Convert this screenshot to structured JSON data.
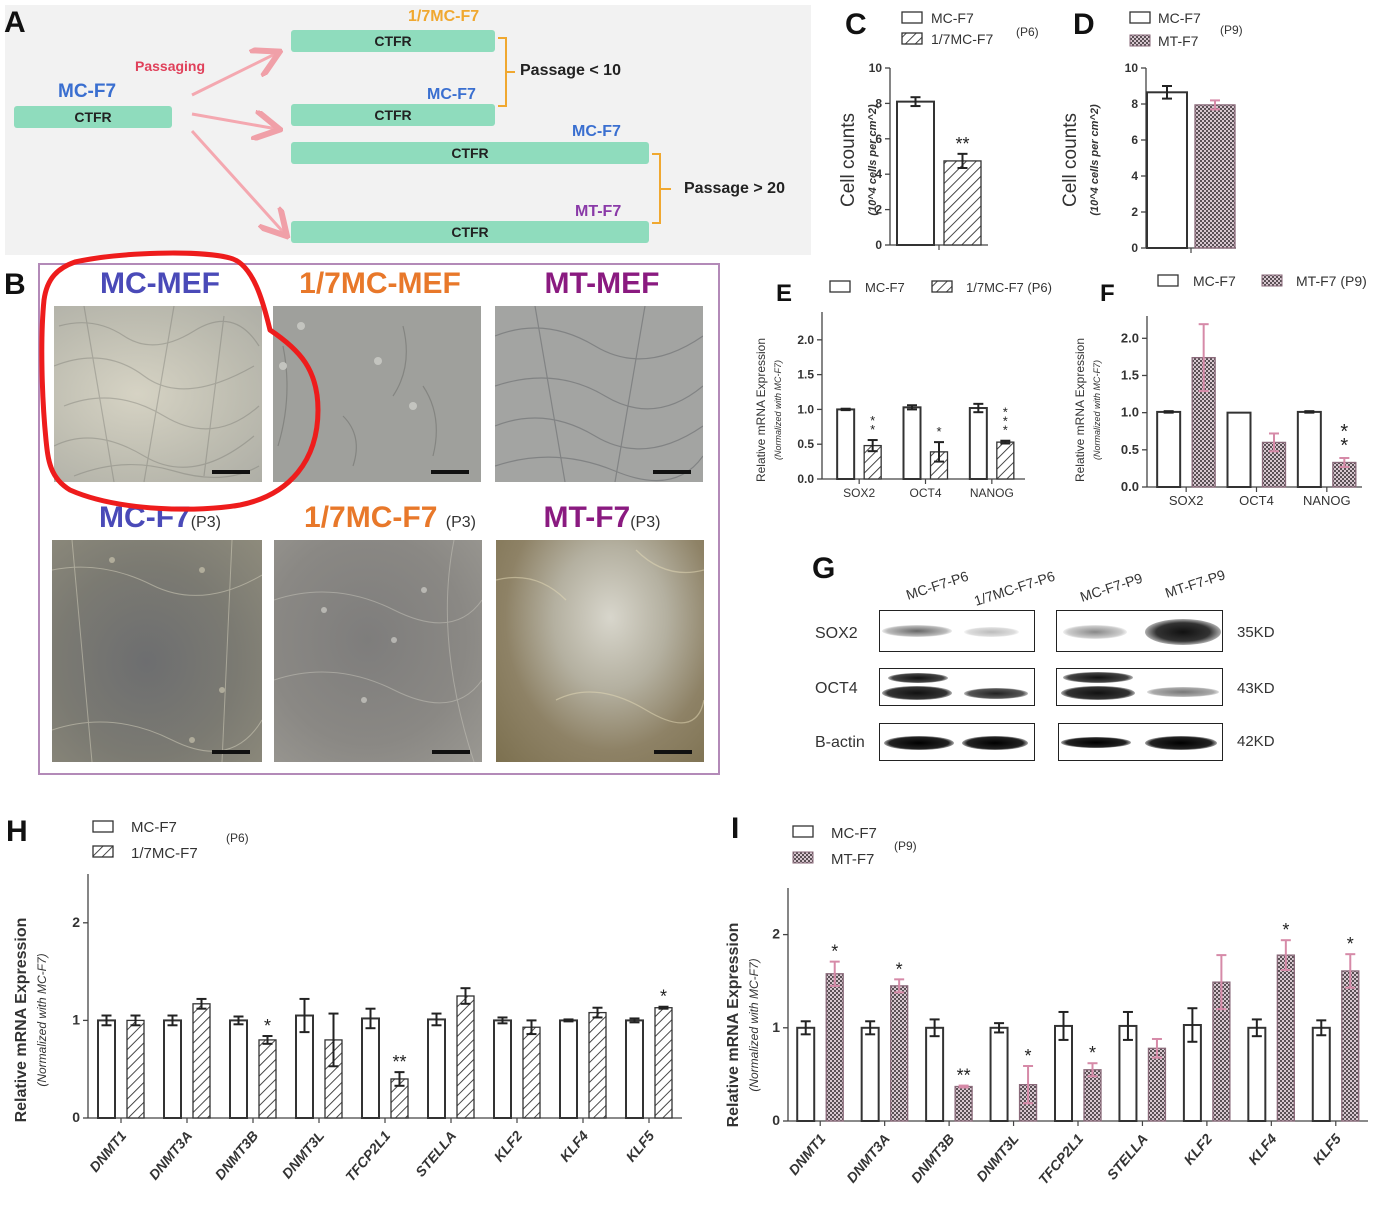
{
  "panels": {
    "A": {
      "letter": "A",
      "passaging_label": "Passaging",
      "source": {
        "name": "MC-F7",
        "box": "CTFR"
      },
      "targets": [
        {
          "name": "1/7MC-F7",
          "box": "CTFR",
          "color": "#f0a830"
        },
        {
          "name": "MC-F7",
          "box": "CTFR",
          "color": "#3a6fd0"
        },
        {
          "name": "MC-F7",
          "box": "CTFR",
          "color": "#3a6fd0"
        },
        {
          "name": "MT-F7",
          "box": "CTFR",
          "color": "#8a3aa8"
        }
      ],
      "bracket_labels": [
        "Passage < 10",
        "Passage > 20"
      ]
    },
    "B": {
      "letter": "B",
      "images": [
        {
          "title": "MC-MEF",
          "passage": "",
          "color": "#4a4ab8"
        },
        {
          "title": "1/7MC-MEF",
          "passage": "",
          "color": "#e8782a"
        },
        {
          "title": "MT-MEF",
          "passage": "",
          "color": "#8a1a80"
        },
        {
          "title": "MC-F7",
          "passage": "(P3)",
          "color": "#4a4ab8"
        },
        {
          "title": "1/7MC-F7",
          "passage": "(P3)",
          "color": "#e8782a"
        },
        {
          "title": "MT-F7",
          "passage": "(P3)",
          "color": "#8a1a80"
        }
      ]
    },
    "C": {
      "letter": "C"
    },
    "D": {
      "letter": "D"
    },
    "E": {
      "letter": "E"
    },
    "F": {
      "letter": "F"
    },
    "G": {
      "letter": "G",
      "lanes": [
        "MC-F7-P6",
        "1/7MC-F7-P6",
        "MC-F7-P9",
        "MT-F7-P9"
      ],
      "rows": [
        {
          "protein": "SOX2",
          "size": "35KD"
        },
        {
          "protein": "OCT4",
          "size": "43KD"
        },
        {
          "protein": "B-actin",
          "size": "42KD"
        }
      ]
    },
    "H": {
      "letter": "H"
    },
    "I": {
      "letter": "I"
    }
  },
  "chart_data": [
    {
      "id": "C",
      "type": "bar",
      "title": "",
      "legend": [
        "MC-F7",
        "1/7MC-F7"
      ],
      "legend_note": "(P6)",
      "ylabel": "Cell counts",
      "ylabel_sub": "(10^4 cells per cm^2)",
      "ylim": [
        0,
        10
      ],
      "yticks": [
        0,
        2,
        4,
        6,
        8,
        10
      ],
      "categories": [
        ""
      ],
      "series": [
        {
          "name": "MC-F7",
          "values": [
            8.1
          ],
          "errors": [
            0.25
          ],
          "sig": [
            ""
          ]
        },
        {
          "name": "1/7MC-F7",
          "values": [
            4.75
          ],
          "errors": [
            0.4
          ],
          "sig": [
            "**"
          ]
        }
      ]
    },
    {
      "id": "D",
      "type": "bar",
      "legend": [
        "MC-F7",
        "MT-F7"
      ],
      "legend_note": "(P9)",
      "ylabel": "Cell counts",
      "ylabel_sub": "(10^4 cells per cm^2)",
      "ylim": [
        0,
        10
      ],
      "yticks": [
        0,
        2,
        4,
        6,
        8,
        10
      ],
      "categories": [
        ""
      ],
      "series": [
        {
          "name": "MC-F7",
          "values": [
            8.65
          ],
          "errors": [
            0.35
          ],
          "sig": [
            ""
          ]
        },
        {
          "name": "MT-F7",
          "values": [
            7.95
          ],
          "errors": [
            0.25
          ],
          "sig": [
            ""
          ]
        }
      ]
    },
    {
      "id": "E",
      "type": "bar",
      "legend": [
        "MC-F7",
        "1/7MC-F7 (P6)"
      ],
      "ylabel": "Relative mRNA Expression",
      "ylabel_sub": "(Normalized with MC-F7)",
      "ylim": [
        0,
        2.4
      ],
      "yticks": [
        "0.0",
        "0.5",
        "1.0",
        "1.5",
        "2.0"
      ],
      "categories": [
        "SOX2",
        "OCT4",
        "NANOG"
      ],
      "series": [
        {
          "name": "MC-F7",
          "values": [
            1.0,
            1.03,
            1.02
          ],
          "errors": [
            0.01,
            0.03,
            0.06
          ],
          "sig": [
            "",
            "",
            ""
          ]
        },
        {
          "name": "1/7MC-F7",
          "values": [
            0.48,
            0.39,
            0.53
          ],
          "errors": [
            0.08,
            0.14,
            0.02
          ],
          "sig": [
            "**",
            "*",
            "***"
          ]
        }
      ]
    },
    {
      "id": "F",
      "type": "bar",
      "legend": [
        "MC-F7",
        "MT-F7 (P9)"
      ],
      "ylabel": "Relative mRNA Expression",
      "ylabel_sub": "(Normalized with MC-F7)",
      "ylim": [
        0,
        2.3
      ],
      "yticks": [
        "0.0",
        "0.5",
        "1.0",
        "1.5",
        "2.0"
      ],
      "categories": [
        "SOX2",
        "OCT4",
        "NANOG"
      ],
      "series": [
        {
          "name": "MC-F7",
          "values": [
            1.01,
            1.0,
            1.01
          ],
          "errors": [
            0.01,
            0.0,
            0.01
          ],
          "sig": [
            "",
            "",
            ""
          ]
        },
        {
          "name": "MT-F7",
          "values": [
            1.74,
            0.6,
            0.33
          ],
          "errors": [
            0.45,
            0.12,
            0.06
          ],
          "sig": [
            "",
            "",
            "**"
          ]
        }
      ]
    },
    {
      "id": "H",
      "type": "bar",
      "legend": [
        "MC-F7",
        "1/7MC-F7"
      ],
      "legend_note": "(P6)",
      "ylabel": "Relative mRNA Expression",
      "ylabel_sub": "(Normalized with MC-F7)",
      "ylim": [
        0,
        2.5
      ],
      "yticks": [
        "0",
        "1",
        "2"
      ],
      "categories": [
        "DNMT1",
        "DNMT3A",
        "DNMT3B",
        "DNMT3L",
        "TFCP2L1",
        "STELLA",
        "KLF2",
        "KLF4",
        "KLF5"
      ],
      "series": [
        {
          "name": "MC-F7",
          "values": [
            1.0,
            1.0,
            1.0,
            1.05,
            1.02,
            1.01,
            1.0,
            1.0,
            1.0
          ],
          "errors": [
            0.05,
            0.05,
            0.04,
            0.17,
            0.1,
            0.06,
            0.03,
            0.01,
            0.02
          ],
          "sig": [
            "",
            "",
            "",
            "",
            "",
            "",
            "",
            "",
            ""
          ]
        },
        {
          "name": "1/7MC-F7",
          "values": [
            1.0,
            1.17,
            0.8,
            0.8,
            0.4,
            1.25,
            0.93,
            1.08,
            1.13
          ],
          "errors": [
            0.05,
            0.05,
            0.04,
            0.27,
            0.07,
            0.08,
            0.07,
            0.05,
            0.01
          ],
          "sig": [
            "",
            "",
            "*",
            "",
            "**",
            "",
            "",
            "",
            "*"
          ]
        }
      ]
    },
    {
      "id": "I",
      "type": "bar",
      "legend": [
        "MC-F7",
        "MT-F7"
      ],
      "legend_note": "(P9)",
      "ylabel": "Relative mRNA Expression",
      "ylabel_sub": "(Normalized with MC-F7)",
      "ylim": [
        0,
        2.5
      ],
      "yticks": [
        "0",
        "1",
        "2"
      ],
      "categories": [
        "DNMT1",
        "DNMT3A",
        "DNMT3B",
        "DNMT3L",
        "TFCP2L1",
        "STELLA",
        "KLF2",
        "KLF4",
        "KLF5"
      ],
      "series": [
        {
          "name": "MC-F7",
          "values": [
            1.0,
            1.0,
            1.0,
            1.0,
            1.02,
            1.02,
            1.03,
            1.0,
            1.0
          ],
          "errors": [
            0.07,
            0.07,
            0.09,
            0.05,
            0.15,
            0.15,
            0.18,
            0.09,
            0.08
          ],
          "sig": [
            "",
            "",
            "",
            "",
            "",
            "",
            "",
            "",
            ""
          ]
        },
        {
          "name": "MT-F7",
          "values": [
            1.58,
            1.45,
            0.37,
            0.39,
            0.55,
            0.78,
            1.49,
            1.78,
            1.61
          ],
          "errors": [
            0.13,
            0.07,
            0.01,
            0.2,
            0.07,
            0.1,
            0.29,
            0.16,
            0.18
          ],
          "sig": [
            "*",
            "*",
            "**",
            "*",
            "*",
            "",
            "",
            "*",
            "*"
          ]
        }
      ]
    }
  ]
}
